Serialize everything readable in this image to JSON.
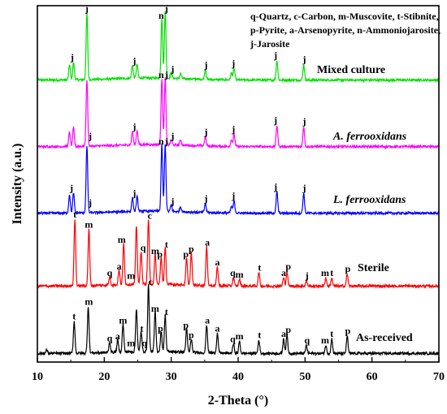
{
  "chart_data": {
    "type": "line",
    "title": "",
    "xlabel": "2-Theta (°)",
    "ylabel": "Intensity (a.u.)",
    "xlim": [
      10,
      70
    ],
    "xticks": [
      10,
      20,
      30,
      40,
      50,
      60,
      70
    ],
    "y_ticks_shown": false,
    "grid": false,
    "legend": {
      "placement": "top-right",
      "lines": [
        "q-Quartz, c-Carbon, m-Muscovite, t-Stibnite,",
        "p-Pyrite, a-Arsenopyrite, n-Ammoniojarosite,",
        "j-Jarosite"
      ]
    },
    "series": [
      {
        "name": "Mixed culture",
        "color": "#00e000",
        "italic": false,
        "peaks": [
          [
            14.8,
            0.22
          ],
          [
            15.4,
            0.25
          ],
          [
            17.4,
            0.95
          ],
          [
            24.2,
            0.18
          ],
          [
            24.9,
            0.2
          ],
          [
            28.6,
            0.85
          ],
          [
            29.1,
            0.95
          ],
          [
            30.0,
            0.08
          ],
          [
            31.4,
            0.07
          ],
          [
            35.1,
            0.14
          ],
          [
            39.0,
            0.1
          ],
          [
            39.4,
            0.16
          ],
          [
            45.8,
            0.28
          ],
          [
            49.8,
            0.22
          ]
        ],
        "labels": [
          [
            15.2,
            "j"
          ],
          [
            17.4,
            "j"
          ],
          [
            24.5,
            "j"
          ],
          [
            28.5,
            "n"
          ],
          [
            29.3,
            "j"
          ],
          [
            30.2,
            "j"
          ],
          [
            35.2,
            "j"
          ],
          [
            39.3,
            "j"
          ],
          [
            45.6,
            "j"
          ],
          [
            49.9,
            "j"
          ]
        ]
      },
      {
        "name": "A. ferrooxidans",
        "color": "#ff00ff",
        "italic": true,
        "peaks": [
          [
            14.8,
            0.22
          ],
          [
            15.4,
            0.28
          ],
          [
            17.4,
            1.0
          ],
          [
            24.2,
            0.2
          ],
          [
            24.9,
            0.22
          ],
          [
            28.6,
            1.0
          ],
          [
            29.1,
            1.0
          ],
          [
            30.0,
            0.08
          ],
          [
            31.4,
            0.08
          ],
          [
            35.1,
            0.14
          ],
          [
            39.0,
            0.1
          ],
          [
            39.4,
            0.18
          ],
          [
            45.8,
            0.32
          ],
          [
            49.8,
            0.3
          ]
        ],
        "labels": [
          [
            17.9,
            "j"
          ],
          [
            28.5,
            "n"
          ],
          [
            29.3,
            "j"
          ],
          [
            24.5,
            "j"
          ],
          [
            30.2,
            "j"
          ],
          [
            35.2,
            "j"
          ],
          [
            39.3,
            "j"
          ],
          [
            45.6,
            "j"
          ],
          [
            49.9,
            "j"
          ]
        ]
      },
      {
        "name": "L. ferrooxidans",
        "color": "#0000ff",
        "italic": true,
        "peaks": [
          [
            14.8,
            0.28
          ],
          [
            15.4,
            0.3
          ],
          [
            17.4,
            1.0
          ],
          [
            24.2,
            0.2
          ],
          [
            24.9,
            0.22
          ],
          [
            28.6,
            1.0
          ],
          [
            29.1,
            1.0
          ],
          [
            30.0,
            0.1
          ],
          [
            31.4,
            0.08
          ],
          [
            35.1,
            0.14
          ],
          [
            39.0,
            0.1
          ],
          [
            39.4,
            0.18
          ],
          [
            45.8,
            0.32
          ],
          [
            49.8,
            0.3
          ]
        ],
        "labels": [
          [
            15.1,
            "j"
          ],
          [
            17.9,
            "j"
          ],
          [
            28.5,
            "n"
          ],
          [
            29.3,
            "j"
          ],
          [
            24.5,
            "j"
          ],
          [
            30.2,
            "j"
          ],
          [
            35.2,
            "j"
          ],
          [
            39.3,
            "j"
          ],
          [
            45.6,
            "j"
          ],
          [
            49.9,
            "j"
          ]
        ]
      },
      {
        "name": "Sterile",
        "color": "#ff0000",
        "italic": false,
        "peaks": [
          [
            15.6,
            1.0
          ],
          [
            17.7,
            0.85
          ],
          [
            20.8,
            0.12
          ],
          [
            22.2,
            0.22
          ],
          [
            22.9,
            0.62
          ],
          [
            24.8,
            0.88
          ],
          [
            25.5,
            0.5
          ],
          [
            26.6,
            0.98
          ],
          [
            27.6,
            0.45
          ],
          [
            28.5,
            0.4
          ],
          [
            29.1,
            0.55
          ],
          [
            32.3,
            0.4
          ],
          [
            33.0,
            0.48
          ],
          [
            35.3,
            0.58
          ],
          [
            36.9,
            0.28
          ],
          [
            39.3,
            0.12
          ],
          [
            40.2,
            0.1
          ],
          [
            43.1,
            0.2
          ],
          [
            46.8,
            0.12
          ],
          [
            47.3,
            0.22
          ],
          [
            50.2,
            0.08
          ],
          [
            53.1,
            0.12
          ],
          [
            54.0,
            0.12
          ],
          [
            56.3,
            0.18
          ]
        ],
        "labels": [
          [
            15.6,
            "t"
          ],
          [
            17.7,
            "m"
          ],
          [
            20.8,
            "q"
          ],
          [
            22.2,
            "a"
          ],
          [
            22.6,
            "m"
          ],
          [
            24.0,
            "m"
          ],
          [
            25.8,
            "q"
          ],
          [
            26.8,
            "c"
          ],
          [
            27.6,
            "m"
          ],
          [
            28.3,
            "p"
          ],
          [
            29.3,
            "t"
          ],
          [
            32.2,
            "p"
          ],
          [
            33.0,
            "p"
          ],
          [
            35.4,
            "a"
          ],
          [
            36.9,
            "a"
          ],
          [
            39.2,
            "q"
          ],
          [
            40.2,
            "m"
          ],
          [
            43.2,
            "t"
          ],
          [
            46.8,
            "a"
          ],
          [
            47.5,
            "p"
          ],
          [
            50.3,
            "j"
          ],
          [
            53.0,
            "m"
          ],
          [
            54.0,
            "t"
          ],
          [
            56.4,
            "p"
          ]
        ]
      },
      {
        "name": "As-received",
        "color": "#000000",
        "italic": false,
        "peaks": [
          [
            11.4,
            0.05
          ],
          [
            15.5,
            0.48
          ],
          [
            17.6,
            0.7
          ],
          [
            20.8,
            0.15
          ],
          [
            22.0,
            0.18
          ],
          [
            22.8,
            0.42
          ],
          [
            24.8,
            0.65
          ],
          [
            25.5,
            0.3
          ],
          [
            26.6,
            1.0
          ],
          [
            27.6,
            0.6
          ],
          [
            28.5,
            0.3
          ],
          [
            29.1,
            0.55
          ],
          [
            32.3,
            0.35
          ],
          [
            33.0,
            0.2
          ],
          [
            35.3,
            0.42
          ],
          [
            36.9,
            0.3
          ],
          [
            39.3,
            0.14
          ],
          [
            40.2,
            0.18
          ],
          [
            43.1,
            0.2
          ],
          [
            46.8,
            0.22
          ],
          [
            47.3,
            0.28
          ],
          [
            50.2,
            0.12
          ],
          [
            53.1,
            0.12
          ],
          [
            54.0,
            0.22
          ],
          [
            56.3,
            0.26
          ]
        ],
        "labels": [
          [
            15.5,
            "t"
          ],
          [
            17.7,
            "m"
          ],
          [
            20.8,
            "q"
          ],
          [
            22.0,
            "a"
          ],
          [
            22.8,
            "m"
          ],
          [
            24.0,
            "m"
          ],
          [
            26.0,
            "q"
          ],
          [
            26.9,
            "c"
          ],
          [
            25.6,
            "t"
          ],
          [
            27.6,
            "m"
          ],
          [
            28.4,
            "p"
          ],
          [
            29.3,
            "t"
          ],
          [
            32.2,
            "p"
          ],
          [
            33.0,
            "p"
          ],
          [
            35.4,
            "a"
          ],
          [
            36.9,
            "a"
          ],
          [
            39.2,
            "q"
          ],
          [
            40.2,
            "m"
          ],
          [
            43.2,
            "t"
          ],
          [
            46.8,
            "a"
          ],
          [
            47.5,
            "p"
          ],
          [
            50.3,
            "q"
          ],
          [
            53.0,
            "m"
          ],
          [
            54.0,
            "t"
          ],
          [
            56.4,
            "p"
          ]
        ]
      }
    ]
  }
}
